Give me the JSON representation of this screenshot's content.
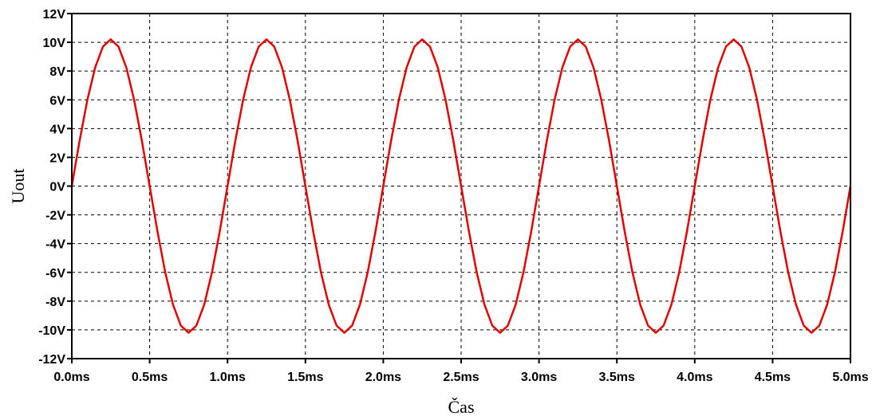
{
  "chart_data": {
    "type": "line",
    "title": "",
    "xlabel": "Čas",
    "ylabel": "Uout",
    "xlim": [
      0.0,
      5.0
    ],
    "ylim": [
      -12,
      12
    ],
    "x_unit": "ms",
    "y_unit": "V",
    "grid": true,
    "grid_style": "dashed",
    "line_color": "#e00000",
    "x_ticks": [
      {
        "value": 0.0,
        "label": "0.0ms"
      },
      {
        "value": 0.5,
        "label": "0.5ms"
      },
      {
        "value": 1.0,
        "label": "1.0ms"
      },
      {
        "value": 1.5,
        "label": "1.5ms"
      },
      {
        "value": 2.0,
        "label": "2.0ms"
      },
      {
        "value": 2.5,
        "label": "2.5ms"
      },
      {
        "value": 3.0,
        "label": "3.0ms"
      },
      {
        "value": 3.5,
        "label": "3.5ms"
      },
      {
        "value": 4.0,
        "label": "4.0ms"
      },
      {
        "value": 4.5,
        "label": "4.5ms"
      },
      {
        "value": 5.0,
        "label": "5.0ms"
      }
    ],
    "y_ticks": [
      {
        "value": 12,
        "label": "12V"
      },
      {
        "value": 10,
        "label": "10V"
      },
      {
        "value": 8,
        "label": "8V"
      },
      {
        "value": 6,
        "label": "6V"
      },
      {
        "value": 4,
        "label": "4V"
      },
      {
        "value": 2,
        "label": "2V"
      },
      {
        "value": 0,
        "label": "0V"
      },
      {
        "value": -2,
        "label": "-2V"
      },
      {
        "value": -4,
        "label": "-4V"
      },
      {
        "value": -6,
        "label": "-6V"
      },
      {
        "value": -8,
        "label": "-8V"
      },
      {
        "value": -10,
        "label": "-10V"
      },
      {
        "value": -12,
        "label": "-12V"
      }
    ],
    "series": [
      {
        "x": [
          0.0,
          0.05,
          0.1,
          0.15,
          0.2,
          0.25,
          0.3,
          0.35,
          0.4,
          0.45,
          0.5,
          0.55,
          0.6,
          0.65,
          0.7,
          0.75,
          0.8,
          0.85,
          0.9,
          0.95,
          1.0,
          1.05,
          1.1,
          1.15,
          1.2,
          1.25,
          1.3,
          1.35,
          1.4,
          1.45,
          1.5,
          1.55,
          1.6,
          1.65,
          1.7,
          1.75,
          1.8,
          1.85,
          1.9,
          1.95,
          2.0,
          2.05,
          2.1,
          2.15,
          2.2,
          2.25,
          2.3,
          2.35,
          2.4,
          2.45,
          2.5,
          2.55,
          2.6,
          2.65,
          2.7,
          2.75,
          2.8,
          2.85,
          2.9,
          2.95,
          3.0,
          3.05,
          3.1,
          3.15,
          3.2,
          3.25,
          3.3,
          3.35,
          3.4,
          3.45,
          3.5,
          3.55,
          3.6,
          3.65,
          3.7,
          3.75,
          3.8,
          3.85,
          3.9,
          3.95,
          4.0,
          4.05,
          4.1,
          4.15,
          4.2,
          4.25,
          4.3,
          4.35,
          4.4,
          4.45,
          4.5,
          4.55,
          4.6,
          4.65,
          4.7,
          4.75,
          4.8,
          4.85,
          4.9,
          4.95,
          5.0
        ],
        "y": [
          0.0,
          3.15,
          6.0,
          8.25,
          9.7,
          10.2,
          9.7,
          8.25,
          6.0,
          3.15,
          0.0,
          -3.15,
          -6.0,
          -8.25,
          -9.7,
          -10.2,
          -9.7,
          -8.25,
          -6.0,
          -3.15,
          0.0,
          3.15,
          6.0,
          8.25,
          9.7,
          10.2,
          9.7,
          8.25,
          6.0,
          3.15,
          0.0,
          -3.15,
          -6.0,
          -8.25,
          -9.7,
          -10.2,
          -9.7,
          -8.25,
          -6.0,
          -3.15,
          0.0,
          3.15,
          6.0,
          8.25,
          9.7,
          10.2,
          9.7,
          8.25,
          6.0,
          3.15,
          0.0,
          -3.15,
          -6.0,
          -8.25,
          -9.7,
          -10.2,
          -9.7,
          -8.25,
          -6.0,
          -3.15,
          0.0,
          3.15,
          6.0,
          8.25,
          9.7,
          10.2,
          9.7,
          8.25,
          6.0,
          3.15,
          0.0,
          -3.15,
          -6.0,
          -8.25,
          -9.7,
          -10.2,
          -9.7,
          -8.25,
          -6.0,
          -3.15,
          0.0,
          3.15,
          6.0,
          8.25,
          9.7,
          10.2,
          9.7,
          8.25,
          6.0,
          3.15,
          0.0,
          -3.15,
          -6.0,
          -8.25,
          -9.7,
          -10.2,
          -9.7,
          -8.25,
          -6.0,
          -3.15,
          0.0
        ]
      }
    ]
  }
}
